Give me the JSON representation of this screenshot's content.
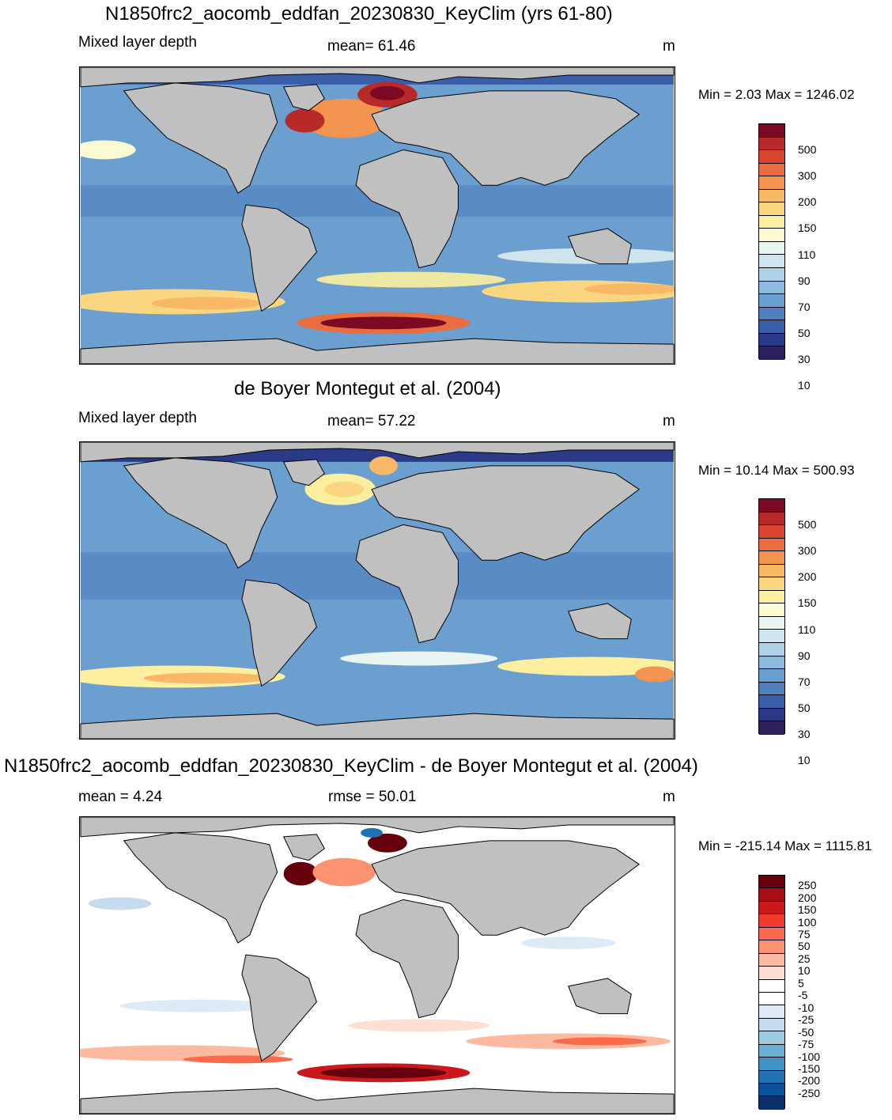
{
  "panels": [
    {
      "title": "N1850frc2_aocomb_eddfan_20230830_KeyClim (yrs 61-80)",
      "left_label": "Mixed layer depth",
      "center_label": "mean=  61.46",
      "units": "m",
      "minmax": "Min =   2.03 Max = 1246.02",
      "colorbar_labels": [
        "500",
        "300",
        "200",
        "150",
        "110",
        "90",
        "70",
        "50",
        "30",
        "10"
      ]
    },
    {
      "title": "de Boyer Montegut et al. (2004)",
      "left_label": "Mixed layer depth",
      "center_label": "mean=  57.22",
      "units": "m",
      "minmax": "Min =  10.14 Max = 500.93",
      "colorbar_labels": [
        "500",
        "300",
        "200",
        "150",
        "110",
        "90",
        "70",
        "50",
        "30",
        "10"
      ]
    },
    {
      "title": "N1850frc2_aocomb_eddfan_20230830_KeyClim - de Boyer Montegut et al. (2004)",
      "left_label": "mean =   4.24",
      "center_label": "rmse =  50.01",
      "units": "m",
      "minmax": "Min = -215.14 Max = 1115.81",
      "colorbar_labels": [
        "250",
        "200",
        "150",
        "100",
        "75",
        "50",
        "25",
        "10",
        "5",
        "-5",
        "-10",
        "-25",
        "-50",
        "-75",
        "-100",
        "-150",
        "-200",
        "-250"
      ]
    }
  ],
  "colors": {
    "land": "#c0c0c0",
    "mld_scale": [
      "#2d1e5c",
      "#2b3a86",
      "#3a5ea8",
      "#4f7fbd",
      "#6a9fcf",
      "#8dbbdf",
      "#aed2e8",
      "#cde5ef",
      "#e9f5f2",
      "#fbfad2",
      "#fcef9f",
      "#fbd681",
      "#f9b866",
      "#f39450",
      "#e96d3e",
      "#d9462f",
      "#b82a2a",
      "#7d0a24"
    ],
    "diff_scale": [
      "#08306b",
      "#08519c",
      "#2171b5",
      "#4292c6",
      "#6baed6",
      "#9ecae1",
      "#c6dbef",
      "#deebf7",
      "#ffffff",
      "#ffffff",
      "#fee0d2",
      "#fcbba1",
      "#fc9272",
      "#fb6a4a",
      "#ef3b2c",
      "#cb181d",
      "#a50f15",
      "#67000d"
    ]
  }
}
